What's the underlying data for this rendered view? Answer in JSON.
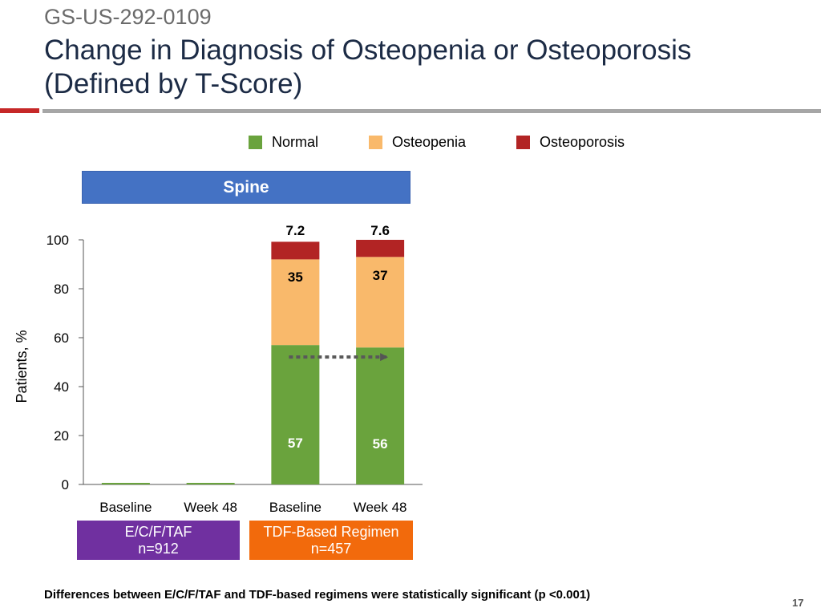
{
  "header": {
    "study_id": "GS-US-292-0109",
    "title_line1": "Change in Diagnosis of Osteopenia or Osteoporosis",
    "title_line2": "(Defined by T-Score)"
  },
  "panel": {
    "label": "Spine"
  },
  "groups": [
    {
      "label": "E/C/F/TAF",
      "n": "n=912",
      "color": "#7030a0"
    },
    {
      "label": "TDF-Based Regimen",
      "n": "n=457",
      "color": "#f26a0c"
    }
  ],
  "chart_data": {
    "type": "bar",
    "stacked": true,
    "title": "Spine",
    "ylabel": "Patients, %",
    "ylim": [
      0,
      100
    ],
    "yticks": [
      0,
      20,
      40,
      60,
      80,
      100
    ],
    "categories": [
      "Baseline",
      "Week 48",
      "Baseline",
      "Week 48"
    ],
    "series": [
      {
        "name": "Normal",
        "color": "#6aa33d",
        "values": [
          0,
          0,
          57,
          56
        ],
        "labels": [
          "",
          "",
          "57",
          "56"
        ]
      },
      {
        "name": "Osteopenia",
        "color": "#f9b96b",
        "values": [
          0,
          0,
          35,
          37
        ],
        "labels": [
          "",
          "",
          "35",
          "37"
        ]
      },
      {
        "name": "Osteoporosis",
        "color": "#b22424",
        "values": [
          0,
          0,
          7.2,
          7.6
        ],
        "labels": [
          "",
          "",
          "7.2",
          "7.6"
        ]
      }
    ],
    "arrow_annotation": {
      "from_category": 2,
      "to_category": 3,
      "style": "dotted"
    }
  },
  "footnote": "Differences between E/C/F/TAF and TDF-based regimens were statistically significant (p <0.001)",
  "page_number": "17"
}
